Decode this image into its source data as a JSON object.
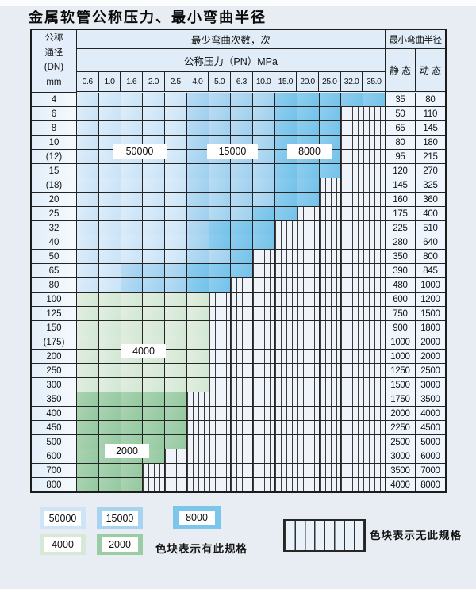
{
  "page_title": "金属软管公称压力、最小弯曲半径",
  "table": {
    "dn_header_lines": [
      "公称",
      "通径",
      "(DN)",
      "mm"
    ],
    "cycles_header": "最少弯曲次数，次",
    "pressure_header": "公称压力（PN）MPa",
    "pressure_columns": [
      "0.6",
      "1.0",
      "1.6",
      "2.0",
      "2.5",
      "4.0",
      "5.0",
      "6.3",
      "10.0",
      "15.0",
      "20.0",
      "25.0",
      "32.0",
      "35.0"
    ],
    "radius_header": "最小弯曲半径",
    "static_header": "静 态",
    "dynamic_header": "动 态",
    "rows": [
      {
        "dn": "4",
        "static": "35",
        "dynamic": "80",
        "bands": [
          {
            "cycles": "50000",
            "cols": [
              1,
              5
            ]
          },
          {
            "cycles": "15000",
            "cols": [
              6,
              9
            ]
          },
          {
            "cycles": "8000",
            "cols": [
              10,
              14
            ]
          }
        ]
      },
      {
        "dn": "6",
        "static": "50",
        "dynamic": "110",
        "bands": [
          {
            "cycles": "50000",
            "cols": [
              1,
              5
            ]
          },
          {
            "cycles": "15000",
            "cols": [
              6,
              9
            ]
          },
          {
            "cycles": "8000",
            "cols": [
              10,
              12
            ]
          }
        ]
      },
      {
        "dn": "8",
        "static": "65",
        "dynamic": "145",
        "bands": [
          {
            "cycles": "50000",
            "cols": [
              1,
              5
            ]
          },
          {
            "cycles": "15000",
            "cols": [
              6,
              9
            ]
          },
          {
            "cycles": "8000",
            "cols": [
              10,
              12
            ]
          }
        ]
      },
      {
        "dn": "10",
        "static": "80",
        "dynamic": "180",
        "bands": [
          {
            "cycles": "50000",
            "cols": [
              1,
              5
            ]
          },
          {
            "cycles": "15000",
            "cols": [
              6,
              9
            ]
          },
          {
            "cycles": "8000",
            "cols": [
              10,
              12
            ]
          }
        ]
      },
      {
        "dn": "(12)",
        "static": "95",
        "dynamic": "215",
        "bands": [
          {
            "cycles": "50000",
            "cols": [
              1,
              5
            ]
          },
          {
            "cycles": "15000",
            "cols": [
              6,
              9
            ]
          },
          {
            "cycles": "8000",
            "cols": [
              10,
              12
            ]
          }
        ]
      },
      {
        "dn": "15",
        "static": "120",
        "dynamic": "270",
        "bands": [
          {
            "cycles": "50000",
            "cols": [
              1,
              5
            ]
          },
          {
            "cycles": "15000",
            "cols": [
              6,
              9
            ]
          },
          {
            "cycles": "8000",
            "cols": [
              10,
              12
            ]
          }
        ]
      },
      {
        "dn": "(18)",
        "static": "145",
        "dynamic": "325",
        "bands": [
          {
            "cycles": "50000",
            "cols": [
              1,
              5
            ]
          },
          {
            "cycles": "15000",
            "cols": [
              6,
              9
            ]
          },
          {
            "cycles": "8000",
            "cols": [
              10,
              11
            ]
          }
        ]
      },
      {
        "dn": "20",
        "static": "160",
        "dynamic": "360",
        "bands": [
          {
            "cycles": "50000",
            "cols": [
              1,
              5
            ]
          },
          {
            "cycles": "15000",
            "cols": [
              6,
              9
            ]
          },
          {
            "cycles": "8000",
            "cols": [
              10,
              11
            ]
          }
        ]
      },
      {
        "dn": "25",
        "static": "175",
        "dynamic": "400",
        "bands": [
          {
            "cycles": "50000",
            "cols": [
              1,
              5
            ]
          },
          {
            "cycles": "15000",
            "cols": [
              6,
              8
            ]
          },
          {
            "cycles": "8000",
            "cols": [
              9,
              10
            ]
          }
        ]
      },
      {
        "dn": "32",
        "static": "225",
        "dynamic": "510",
        "bands": [
          {
            "cycles": "50000",
            "cols": [
              1,
              5
            ]
          },
          {
            "cycles": "15000",
            "cols": [
              6,
              6
            ]
          },
          {
            "cycles": "8000",
            "cols": [
              7,
              9
            ]
          }
        ]
      },
      {
        "dn": "40",
        "static": "280",
        "dynamic": "640",
        "bands": [
          {
            "cycles": "50000",
            "cols": [
              1,
              5
            ]
          },
          {
            "cycles": "15000",
            "cols": [
              6,
              6
            ]
          },
          {
            "cycles": "8000",
            "cols": [
              7,
              9
            ]
          }
        ]
      },
      {
        "dn": "50",
        "static": "350",
        "dynamic": "800",
        "bands": [
          {
            "cycles": "50000",
            "cols": [
              1,
              5
            ]
          },
          {
            "cycles": "15000",
            "cols": [
              6,
              7
            ]
          },
          {
            "cycles": "8000",
            "cols": [
              8,
              8
            ]
          }
        ]
      },
      {
        "dn": "65",
        "static": "390",
        "dynamic": "845",
        "bands": [
          {
            "cycles": "50000",
            "cols": [
              1,
              2
            ]
          },
          {
            "cycles": "15000",
            "cols": [
              3,
              5
            ]
          },
          {
            "cycles": "8000",
            "cols": [
              6,
              8
            ]
          }
        ]
      },
      {
        "dn": "80",
        "static": "480",
        "dynamic": "1000",
        "bands": [
          {
            "cycles": "50000",
            "cols": [
              1,
              2
            ]
          },
          {
            "cycles": "15000",
            "cols": [
              3,
              5
            ]
          },
          {
            "cycles": "8000",
            "cols": [
              6,
              7
            ]
          }
        ]
      },
      {
        "dn": "100",
        "static": "600",
        "dynamic": "1200",
        "bands": [
          {
            "cycles": "4000",
            "cols": [
              1,
              6
            ]
          }
        ]
      },
      {
        "dn": "125",
        "static": "750",
        "dynamic": "1500",
        "bands": [
          {
            "cycles": "4000",
            "cols": [
              1,
              6
            ]
          }
        ]
      },
      {
        "dn": "150",
        "static": "900",
        "dynamic": "1800",
        "bands": [
          {
            "cycles": "4000",
            "cols": [
              1,
              6
            ]
          }
        ]
      },
      {
        "dn": "(175)",
        "static": "1000",
        "dynamic": "2000",
        "bands": [
          {
            "cycles": "4000",
            "cols": [
              1,
              6
            ]
          }
        ]
      },
      {
        "dn": "200",
        "static": "1000",
        "dynamic": "2000",
        "bands": [
          {
            "cycles": "4000",
            "cols": [
              1,
              6
            ]
          }
        ]
      },
      {
        "dn": "250",
        "static": "1250",
        "dynamic": "2500",
        "bands": [
          {
            "cycles": "4000",
            "cols": [
              1,
              6
            ]
          }
        ]
      },
      {
        "dn": "300",
        "static": "1500",
        "dynamic": "3000",
        "bands": [
          {
            "cycles": "4000",
            "cols": [
              1,
              6
            ]
          }
        ]
      },
      {
        "dn": "350",
        "static": "1750",
        "dynamic": "3500",
        "bands": [
          {
            "cycles": "2000",
            "cols": [
              1,
              5
            ]
          }
        ]
      },
      {
        "dn": "400",
        "static": "2000",
        "dynamic": "4000",
        "bands": [
          {
            "cycles": "2000",
            "cols": [
              1,
              5
            ]
          }
        ]
      },
      {
        "dn": "450",
        "static": "2250",
        "dynamic": "4500",
        "bands": [
          {
            "cycles": "2000",
            "cols": [
              1,
              5
            ]
          }
        ]
      },
      {
        "dn": "500",
        "static": "2500",
        "dynamic": "5000",
        "bands": [
          {
            "cycles": "2000",
            "cols": [
              1,
              5
            ]
          }
        ]
      },
      {
        "dn": "600",
        "static": "3000",
        "dynamic": "6000",
        "bands": [
          {
            "cycles": "2000",
            "cols": [
              1,
              4
            ]
          }
        ]
      },
      {
        "dn": "700",
        "static": "3500",
        "dynamic": "7000",
        "bands": [
          {
            "cycles": "2000",
            "cols": [
              1,
              3
            ]
          }
        ]
      },
      {
        "dn": "800",
        "static": "4000",
        "dynamic": "8000",
        "bands": [
          {
            "cycles": "2000",
            "cols": [
              1,
              3
            ]
          }
        ]
      }
    ],
    "band_labels": [
      "50000",
      "15000",
      "8000",
      "4000",
      "2000"
    ]
  },
  "cycle_colors": {
    "50000": "#cfe5f7",
    "15000": "#a6d4f0",
    "8000": "#7cc5eb",
    "4000": "#d6e9d7",
    "2000": "#9bcda5"
  },
  "legend": {
    "items": [
      {
        "value": "50000",
        "color": "#cfe5f7"
      },
      {
        "value": "15000",
        "color": "#a6d4f0"
      },
      {
        "value": "8000",
        "color": "#7cc5eb"
      },
      {
        "value": "4000",
        "color": "#d6e9d7"
      },
      {
        "value": "2000",
        "color": "#9bcda5"
      }
    ],
    "has_spec_text": "色块表示有此规格",
    "no_spec_text": "色块表示无此规格"
  }
}
